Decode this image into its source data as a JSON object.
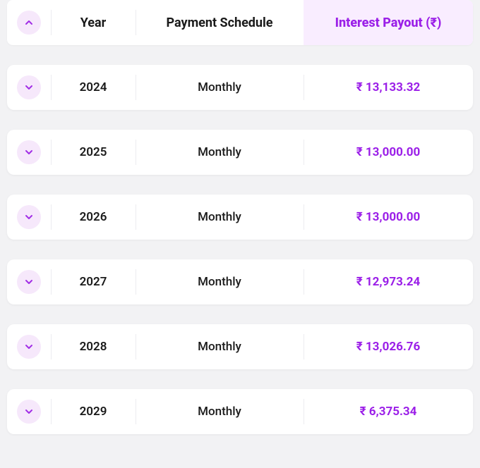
{
  "colors": {
    "accent": "#9b1fe8",
    "chevron": "#a22fe6",
    "circle_bg": "#f6e8fb",
    "header_payout_bg": "#f9edff",
    "text_primary": "#1a1a1a",
    "row_bg": "#ffffff",
    "page_bg": "#f2f2f4",
    "separator": "#ececf0"
  },
  "header": {
    "year": "Year",
    "schedule": "Payment Schedule",
    "payout": "Interest Payout (₹)"
  },
  "rows": [
    {
      "year": "2024",
      "schedule": "Monthly",
      "payout": "₹ 13,133.32"
    },
    {
      "year": "2025",
      "schedule": "Monthly",
      "payout": "₹ 13,000.00"
    },
    {
      "year": "2026",
      "schedule": "Monthly",
      "payout": "₹ 13,000.00"
    },
    {
      "year": "2027",
      "schedule": "Monthly",
      "payout": "₹ 12,973.24"
    },
    {
      "year": "2028",
      "schedule": "Monthly",
      "payout": "₹ 13,026.76"
    },
    {
      "year": "2029",
      "schedule": "Monthly",
      "payout": "₹ 6,375.34"
    }
  ]
}
